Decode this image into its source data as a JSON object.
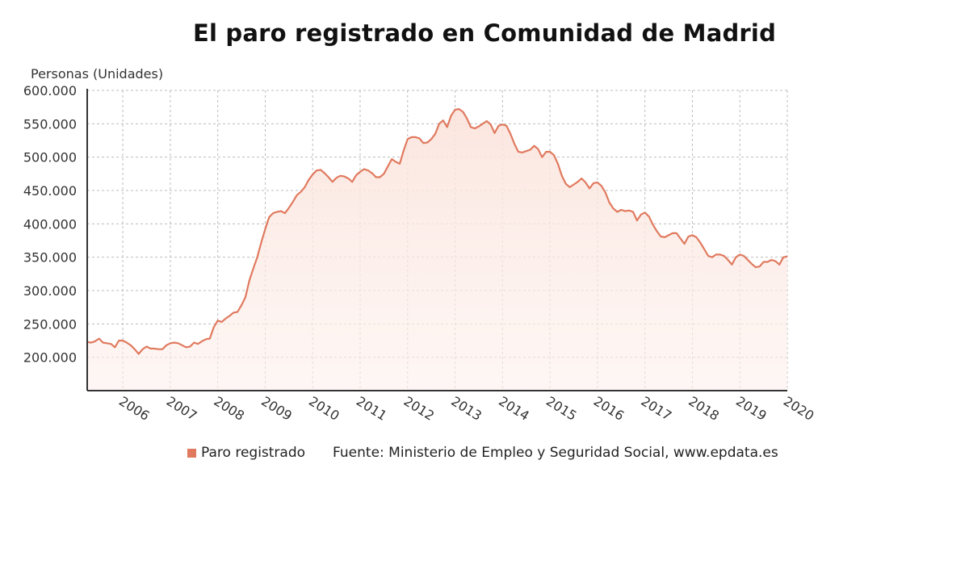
{
  "title": "El paro registrado en Comunidad de Madrid",
  "legend": {
    "series_label": "Paro registrado",
    "source": "Fuente: Ministerio de Empleo y Seguridad Social, www.epdata.es"
  },
  "colors": {
    "line": "#e07a5f",
    "fill_top": "#fbe3db",
    "grid": "#bdbdbd",
    "axis": "#333333"
  },
  "chart_data": {
    "type": "area",
    "ylabel": "Personas (Unidades)",
    "ylim": [
      150000,
      600000
    ],
    "yticks": [
      200000,
      250000,
      300000,
      350000,
      400000,
      450000,
      500000,
      550000,
      600000
    ],
    "ytick_labels": [
      "200.000",
      "250.000",
      "300.000",
      "350.000",
      "400.000",
      "450.000",
      "500.000",
      "550.000",
      "600.000"
    ],
    "x_start": "2005-04",
    "x_end": "2020-01",
    "xtick_labels": [
      "2006",
      "2007",
      "2008",
      "2009",
      "2010",
      "2011",
      "2012",
      "2013",
      "2014",
      "2015",
      "2016",
      "2017",
      "2018",
      "2019",
      "2020"
    ],
    "grid": true,
    "legend_position": "bottom",
    "series": [
      {
        "name": "Paro registrado",
        "x": [
          "2005-04",
          "2005-05",
          "2005-06",
          "2005-07",
          "2005-08",
          "2005-09",
          "2005-10",
          "2005-11",
          "2005-12",
          "2006-01",
          "2006-02",
          "2006-03",
          "2006-04",
          "2006-05",
          "2006-06",
          "2006-07",
          "2006-08",
          "2006-09",
          "2006-10",
          "2006-11",
          "2006-12",
          "2007-01",
          "2007-02",
          "2007-03",
          "2007-04",
          "2007-05",
          "2007-06",
          "2007-07",
          "2007-08",
          "2007-09",
          "2007-10",
          "2007-11",
          "2007-12",
          "2008-01",
          "2008-02",
          "2008-03",
          "2008-04",
          "2008-05",
          "2008-06",
          "2008-07",
          "2008-08",
          "2008-09",
          "2008-10",
          "2008-11",
          "2008-12",
          "2009-01",
          "2009-02",
          "2009-03",
          "2009-04",
          "2009-05",
          "2009-06",
          "2009-07",
          "2009-08",
          "2009-09",
          "2009-10",
          "2009-11",
          "2009-12",
          "2010-01",
          "2010-02",
          "2010-03",
          "2010-04",
          "2010-05",
          "2010-06",
          "2010-07",
          "2010-08",
          "2010-09",
          "2010-10",
          "2010-11",
          "2010-12",
          "2011-01",
          "2011-02",
          "2011-03",
          "2011-04",
          "2011-05",
          "2011-06",
          "2011-07",
          "2011-08",
          "2011-09",
          "2011-10",
          "2011-11",
          "2011-12",
          "2012-01",
          "2012-02",
          "2012-03",
          "2012-04",
          "2012-05",
          "2012-06",
          "2012-07",
          "2012-08",
          "2012-09",
          "2012-10",
          "2012-11",
          "2012-12",
          "2013-01",
          "2013-02",
          "2013-03",
          "2013-04",
          "2013-05",
          "2013-06",
          "2013-07",
          "2013-08",
          "2013-09",
          "2013-10",
          "2013-11",
          "2013-12",
          "2014-01",
          "2014-02",
          "2014-03",
          "2014-04",
          "2014-05",
          "2014-06",
          "2014-07",
          "2014-08",
          "2014-09",
          "2014-10",
          "2014-11",
          "2014-12",
          "2015-01",
          "2015-02",
          "2015-03",
          "2015-04",
          "2015-05",
          "2015-06",
          "2015-07",
          "2015-08",
          "2015-09",
          "2015-10",
          "2015-11",
          "2015-12",
          "2016-01",
          "2016-02",
          "2016-03",
          "2016-04",
          "2016-05",
          "2016-06",
          "2016-07",
          "2016-08",
          "2016-09",
          "2016-10",
          "2016-11",
          "2016-12",
          "2017-01",
          "2017-02",
          "2017-03",
          "2017-04",
          "2017-05",
          "2017-06",
          "2017-07",
          "2017-08",
          "2017-09",
          "2017-10",
          "2017-11",
          "2017-12",
          "2018-01",
          "2018-02",
          "2018-03",
          "2018-04",
          "2018-05",
          "2018-06",
          "2018-07",
          "2018-08",
          "2018-09",
          "2018-10",
          "2018-11",
          "2018-12",
          "2019-01",
          "2019-02",
          "2019-03",
          "2019-04",
          "2019-05",
          "2019-06",
          "2019-07",
          "2019-08",
          "2019-09",
          "2019-10",
          "2019-11",
          "2019-12",
          "2020-01"
        ],
        "values": [
          223000,
          222000,
          224000,
          228000,
          222000,
          221000,
          220000,
          215000,
          225000,
          225000,
          222000,
          218000,
          212000,
          205000,
          212000,
          216000,
          213000,
          213000,
          212000,
          212000,
          218000,
          221000,
          222000,
          221000,
          218000,
          215000,
          216000,
          222000,
          220000,
          224000,
          227000,
          228000,
          245000,
          255000,
          253000,
          258000,
          262000,
          267000,
          268000,
          278000,
          290000,
          315000,
          333000,
          350000,
          372000,
          392000,
          410000,
          416000,
          418000,
          419000,
          416000,
          424000,
          433000,
          443000,
          448000,
          455000,
          466000,
          474000,
          480000,
          481000,
          476000,
          470000,
          463000,
          469000,
          472000,
          471000,
          468000,
          463000,
          473000,
          478000,
          482000,
          480000,
          476000,
          470000,
          470000,
          475000,
          486000,
          497000,
          493000,
          490000,
          510000,
          527000,
          530000,
          530000,
          528000,
          521000,
          522000,
          527000,
          535000,
          550000,
          555000,
          545000,
          562000,
          571000,
          572000,
          568000,
          558000,
          545000,
          543000,
          546000,
          550000,
          554000,
          549000,
          536000,
          547000,
          549000,
          547000,
          535000,
          520000,
          508000,
          507000,
          509000,
          511000,
          517000,
          512000,
          500000,
          508000,
          508000,
          503000,
          490000,
          472000,
          460000,
          455000,
          459000,
          463000,
          468000,
          462000,
          453000,
          461000,
          462000,
          457000,
          447000,
          432000,
          423000,
          418000,
          421000,
          419000,
          420000,
          418000,
          405000,
          414000,
          417000,
          411000,
          399000,
          389000,
          381000,
          380000,
          383000,
          386000,
          386000,
          378000,
          370000,
          381000,
          383000,
          380000,
          372000,
          362000,
          352000,
          350000,
          354000,
          354000,
          352000,
          346000,
          339000,
          350000,
          354000,
          352000,
          346000,
          340000,
          335000,
          336000,
          343000,
          343000,
          346000,
          344000,
          339000,
          350000,
          351000
        ]
      }
    ]
  }
}
